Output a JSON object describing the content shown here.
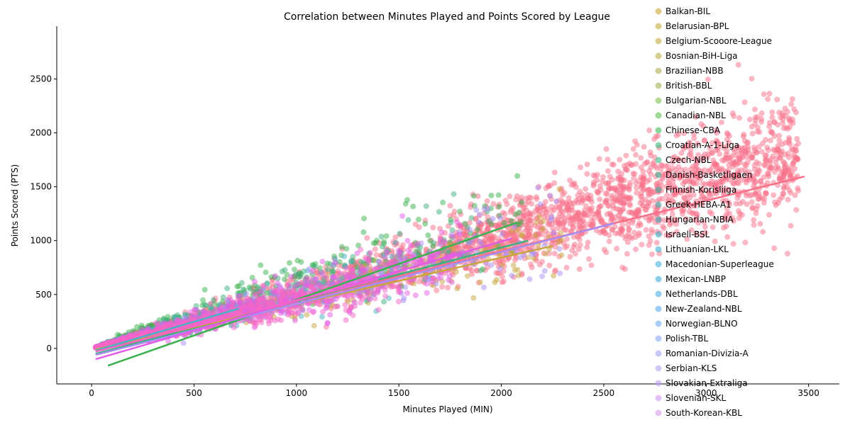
{
  "chart_data": {
    "type": "scatter",
    "title": "Correlation between Minutes Played and Points Scored by League",
    "xlabel": "Minutes Played (MIN)",
    "ylabel": "Points Scored (PTS)",
    "xlim": [
      -170,
      3650
    ],
    "ylim": [
      -330,
      2990
    ],
    "xticks": [
      0,
      500,
      1000,
      1500,
      2000,
      2500,
      3000,
      3500
    ],
    "yticks": [
      0,
      500,
      1000,
      1500,
      2000,
      2500
    ],
    "grid": false,
    "legend_position": "right",
    "legend_entries_visible": [
      "Balkan-BIL",
      "Belarusian-BPL",
      "Belgium-Scooore-League",
      "Bosnian-BiH-Liga",
      "Brazilian-NBB",
      "British-BBL",
      "Bulgarian-NBL",
      "Canadian-NBL",
      "Chinese-CBA",
      "Croatian-A-1-Liga",
      "Czech-NBL",
      "Danish-Basketligaen",
      "Finnish-Korisliiga",
      "Greek-HEBA-A1",
      "Hungarian-NBIA",
      "Israeli-BSL",
      "Lithuanian-LKL",
      "Macedonian-Superleague",
      "Mexican-LNBP",
      "Netherlands-DBL",
      "New-Zealand-NBL",
      "Norwegian-BLNO",
      "Polish-TBL",
      "Romanian-Divizia-A",
      "Serbian-KLS",
      "Slovakian-Extraliga",
      "Slovenian-SKL",
      "South-Korean-KBL"
    ],
    "series_colors": [
      "#c8a838",
      "#c4ab3d",
      "#bfae44",
      "#b8b04a",
      "#aab14f",
      "#9cb54f",
      "#86bb4e",
      "#5fbe4f",
      "#3fbb5c",
      "#3bb878",
      "#3cb78c",
      "#3ab699",
      "#3bb5a7",
      "#3bb3b3",
      "#3cb3bd",
      "#3db2c6",
      "#3eb1cf",
      "#41b0d8",
      "#45afe0",
      "#4caee8",
      "#59acf0",
      "#70aaf5",
      "#88a8f6",
      "#a0a5f5",
      "#b2a3f2",
      "#c39ff0",
      "#d19aee",
      "#dd97ec"
    ],
    "dominant_series_color": "#f77189",
    "trend_lines": [
      {
        "color": "#f77189",
        "x": [
          20,
          3480
        ],
        "y": [
          -20,
          1595
        ]
      },
      {
        "color": "#3cb14f",
        "x": [
          80,
          2080
        ],
        "y": [
          -160,
          1170
        ]
      },
      {
        "color": "#3db07c",
        "x": [
          20,
          2130
        ],
        "y": [
          -50,
          1000
        ]
      },
      {
        "color": "#c7a63e",
        "x": [
          20,
          2250
        ],
        "y": [
          -10,
          950
        ]
      },
      {
        "color": "#49b2c2",
        "x": [
          20,
          720
        ],
        "y": [
          -20,
          370
        ]
      },
      {
        "color": "#a78ef3",
        "x": [
          20,
          2550
        ],
        "y": [
          -60,
          1160
        ]
      },
      {
        "color": "#e35ce6",
        "x": [
          20,
          2050
        ],
        "y": [
          -100,
          1020
        ]
      },
      {
        "color": "#f565c8",
        "x": [
          20,
          1400
        ],
        "y": [
          -30,
          640
        ]
      }
    ],
    "clusters": [
      {
        "color": "#f77189",
        "n": 1400,
        "xmin": 60,
        "xmax": 3450,
        "slope": 0.52,
        "sd": 0.17,
        "xpow": 0.9
      },
      {
        "color": "#f77189",
        "n": 900,
        "xmin": 1700,
        "xmax": 3450,
        "slope": 0.53,
        "sd": 0.16,
        "xpow": 1.0
      },
      {
        "color": "#3cb14f",
        "n": 260,
        "xmin": 50,
        "xmax": 2100,
        "slope": 0.63,
        "sd": 0.18,
        "xpow": 1.5
      },
      {
        "color": "#3db07c",
        "n": 200,
        "xmin": 50,
        "xmax": 2000,
        "slope": 0.57,
        "sd": 0.18,
        "xpow": 1.5
      },
      {
        "color": "#c7a63e",
        "n": 300,
        "xmin": 40,
        "xmax": 2300,
        "slope": 0.44,
        "sd": 0.18,
        "xpow": 1.5
      },
      {
        "color": "#49b2c2",
        "n": 300,
        "xmin": 30,
        "xmax": 1500,
        "slope": 0.5,
        "sd": 0.2,
        "xpow": 1.6
      },
      {
        "color": "#a78ef3",
        "n": 350,
        "xmin": 30,
        "xmax": 2300,
        "slope": 0.47,
        "sd": 0.2,
        "xpow": 1.6
      },
      {
        "color": "#e35ce6",
        "n": 600,
        "xmin": 20,
        "xmax": 1800,
        "slope": 0.48,
        "sd": 0.2,
        "xpow": 1.6
      },
      {
        "color": "#f565c8",
        "n": 700,
        "xmin": 20,
        "xmax": 1500,
        "slope": 0.44,
        "sd": 0.2,
        "xpow": 1.7
      }
    ]
  }
}
